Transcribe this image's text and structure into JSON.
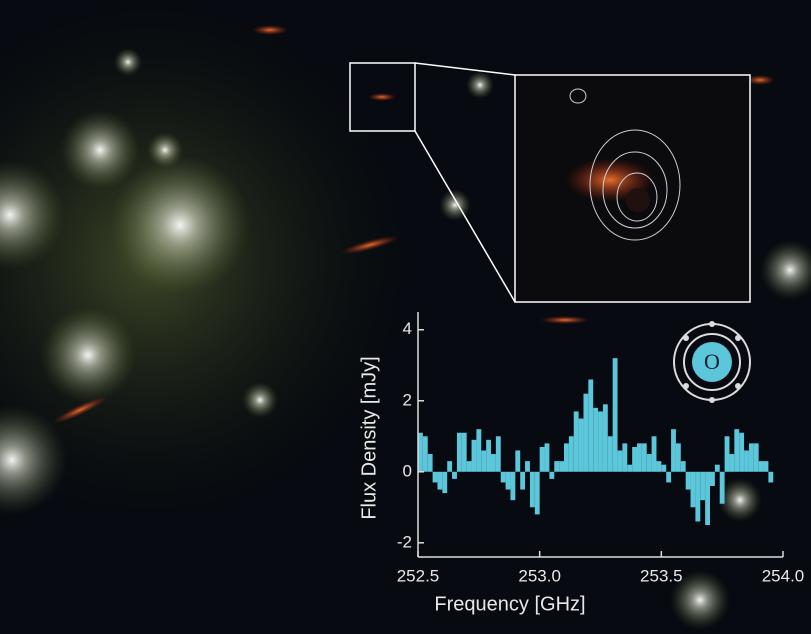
{
  "chart_data": {
    "type": "bar",
    "color": "#5cc6da",
    "icon_label": "O",
    "xlabel": "Frequency [GHz]",
    "ylabel": "Flux Density [mJy]",
    "x": [
      252.51,
      252.53,
      252.55,
      252.57,
      252.59,
      252.61,
      252.63,
      252.65,
      252.67,
      252.69,
      252.71,
      252.73,
      252.75,
      252.77,
      252.79,
      252.81,
      252.83,
      252.85,
      252.87,
      252.89,
      252.91,
      252.93,
      252.95,
      252.97,
      252.99,
      253.01,
      253.03,
      253.05,
      253.07,
      253.09,
      253.11,
      253.13,
      253.15,
      253.17,
      253.19,
      253.21,
      253.23,
      253.25,
      253.27,
      253.29,
      253.31,
      253.33,
      253.35,
      253.37,
      253.39,
      253.41,
      253.43,
      253.45,
      253.47,
      253.49,
      253.51,
      253.53,
      253.55,
      253.57,
      253.59,
      253.61,
      253.63,
      253.65,
      253.67,
      253.69,
      253.71,
      253.73,
      253.75,
      253.77,
      253.79,
      253.81,
      253.83,
      253.85,
      253.87,
      253.89,
      253.91,
      253.93,
      253.95
    ],
    "values": [
      1.1,
      1.0,
      0.5,
      -0.3,
      -0.5,
      -0.6,
      0.3,
      -0.2,
      1.1,
      1.1,
      0.3,
      0.9,
      1.2,
      0.6,
      0.9,
      0.5,
      1.0,
      -0.3,
      -0.5,
      -0.8,
      0.6,
      -0.5,
      0.3,
      -1.0,
      -1.2,
      0.7,
      0.8,
      -0.2,
      0.3,
      0.3,
      0.8,
      1.0,
      1.7,
      1.5,
      2.2,
      2.6,
      1.8,
      1.7,
      1.9,
      1.0,
      3.2,
      0.6,
      0.8,
      0.2,
      0.7,
      0.8,
      0.8,
      0.5,
      1.0,
      0.3,
      0.2,
      -0.3,
      1.2,
      0.8,
      0.3,
      -0.5,
      -1.0,
      -1.4,
      -0.8,
      -1.5,
      -0.4,
      0.2,
      -0.9,
      1.0,
      0.5,
      1.2,
      1.1,
      0.6,
      0.8,
      0.8,
      0.3,
      0.3,
      -0.3
    ],
    "xlim": [
      252.5,
      254.0
    ],
    "xticks": [
      252.5,
      {
        "value": 253,
        "label": "253.0"
      },
      253.5,
      {
        "value": 254,
        "label": "254.0"
      }
    ],
    "ylim": [
      -2.4,
      4.5
    ],
    "yticks": [
      -2,
      0,
      2,
      4
    ]
  }
}
